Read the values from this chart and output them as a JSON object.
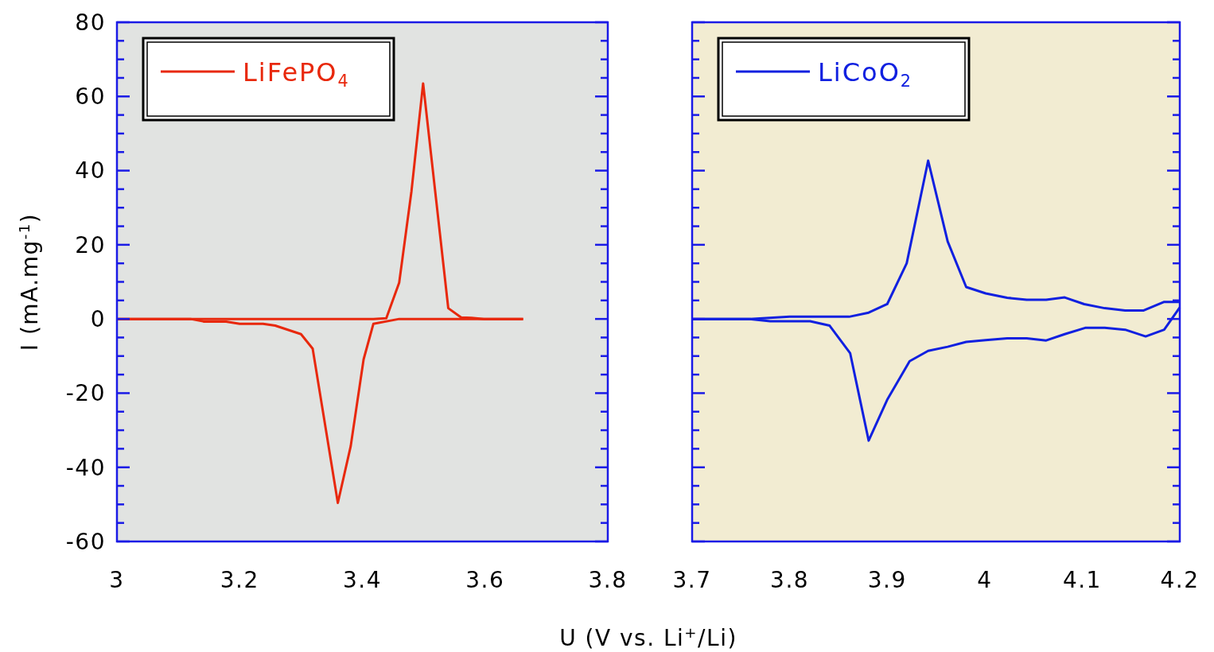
{
  "chart_data": [
    {
      "type": "line",
      "ylabel": "I (mA.mg$^{-1}$)",
      "xlabel": "U (V vs. Li$^{+}$/Li)",
      "xlim": [
        3,
        3.8
      ],
      "xticks": [
        3,
        3.2,
        3.4,
        3.6,
        3.8
      ],
      "ylim": [
        -60,
        80
      ],
      "yticks": [
        -60,
        {
          "value": -55,
          "label": null
        },
        {
          "value": -50,
          "label": null
        },
        {
          "value": -45,
          "label": null
        },
        -40,
        {
          "value": -35,
          "label": null
        },
        {
          "value": -30,
          "label": null
        },
        {
          "value": -25,
          "label": null
        },
        -20,
        {
          "value": -15,
          "label": null
        },
        {
          "value": -10,
          "label": null
        },
        {
          "value": -5,
          "label": null
        },
        0,
        {
          "value": 5,
          "label": null
        },
        {
          "value": 10,
          "label": null
        },
        {
          "value": 15,
          "label": null
        },
        20,
        {
          "value": 25,
          "label": null
        },
        {
          "value": 30,
          "label": null
        },
        {
          "value": 35,
          "label": null
        },
        40,
        {
          "value": 45,
          "label": null
        },
        {
          "value": 50,
          "label": null
        },
        {
          "value": 55,
          "label": null
        },
        60,
        {
          "value": 65,
          "label": null
        },
        {
          "value": 70,
          "label": null
        },
        {
          "value": 75,
          "label": null
        },
        80
      ],
      "legend": "top left",
      "grid": false,
      "marker": "none",
      "line_style": "solid",
      "series": [
        {
          "name": "LiFePO$_{4}$",
          "color": "#e8280c",
          "x": [
            3.0,
            3.12,
            3.142,
            3.178,
            3.2,
            3.238,
            3.258,
            3.3,
            3.319,
            3.36,
            3.381,
            3.402,
            3.418,
            3.46,
            3.662
          ],
          "values": [
            0,
            0,
            -0.7,
            -0.7,
            -1.3,
            -1.3,
            -1.8,
            -4.1,
            -8.0,
            -49.6,
            -34.3,
            -10.9,
            -1.3,
            0,
            0
          ]
        },
        {
          "color": "#e8280c",
          "x": [
            3.0,
            3.418,
            3.439,
            3.46,
            3.48,
            3.499,
            3.54,
            3.561,
            3.578,
            3.598,
            3.662
          ],
          "values": [
            0,
            0,
            0.2,
            9.8,
            34.4,
            63.5,
            2.9,
            0.4,
            0.3,
            0,
            0
          ]
        }
      ]
    },
    {
      "type": "line",
      "xlim": [
        3.7,
        4.2
      ],
      "xticks": [
        3.7,
        3.8,
        3.9,
        4,
        4.1,
        4.2
      ],
      "ylim": [
        -60,
        80
      ],
      "yticks": [
        {
          "value": -60,
          "label": null
        },
        {
          "value": -55,
          "label": null
        },
        {
          "value": -50,
          "label": null
        },
        {
          "value": -45,
          "label": null
        },
        {
          "value": -40,
          "label": null
        },
        {
          "value": -35,
          "label": null
        },
        {
          "value": -30,
          "label": null
        },
        {
          "value": -25,
          "label": null
        },
        {
          "value": -20,
          "label": null
        },
        {
          "value": -15,
          "label": null
        },
        {
          "value": -10,
          "label": null
        },
        {
          "value": -5,
          "label": null
        },
        {
          "value": 0,
          "label": null
        },
        {
          "value": 5,
          "label": null
        },
        {
          "value": 10,
          "label": null
        },
        {
          "value": 15,
          "label": null
        },
        {
          "value": 20,
          "label": null
        },
        {
          "value": 25,
          "label": null
        },
        {
          "value": 30,
          "label": null
        },
        {
          "value": 35,
          "label": null
        },
        {
          "value": 40,
          "label": null
        },
        {
          "value": 45,
          "label": null
        },
        {
          "value": 50,
          "label": null
        },
        {
          "value": 55,
          "label": null
        },
        {
          "value": 60,
          "label": null
        },
        {
          "value": 65,
          "label": null
        },
        {
          "value": 70,
          "label": null
        },
        {
          "value": 75,
          "label": null
        },
        {
          "value": 80,
          "label": null
        }
      ],
      "tick_labels": "x",
      "legend": "top left",
      "grid": false,
      "marker": "none",
      "line_style": "solid",
      "series": [
        {
          "name": "LiCoO$_{2}$",
          "color": "#1020e0",
          "x": [
            3.7,
            3.759,
            3.78,
            3.821,
            3.841,
            3.862,
            3.881,
            3.9,
            3.923,
            3.942,
            3.962,
            3.981,
            4.001,
            4.023,
            4.043,
            4.063,
            4.082,
            4.103,
            4.123,
            4.144,
            4.165,
            4.184,
            4.2
          ],
          "values": [
            0,
            0,
            -0.6,
            -0.6,
            -1.8,
            -9.2,
            -32.8,
            -21.8,
            -11.4,
            -8.6,
            -7.5,
            -6.2,
            -5.7,
            -5.2,
            -5.2,
            -5.8,
            -4.1,
            -2.4,
            -2.4,
            -2.9,
            -4.7,
            -2.9,
            3.1
          ]
        },
        {
          "color": "#1020e0",
          "x": [
            3.7,
            3.759,
            3.8,
            3.861,
            3.881,
            3.9,
            3.92,
            3.942,
            3.962,
            3.981,
            4.001,
            4.023,
            4.043,
            4.063,
            4.082,
            4.102,
            4.123,
            4.144,
            4.163,
            4.184,
            4.2
          ],
          "values": [
            0,
            0,
            0.6,
            0.6,
            1.7,
            4.0,
            15.0,
            42.7,
            20.9,
            8.6,
            6.9,
            5.7,
            5.2,
            5.2,
            5.8,
            4.0,
            2.9,
            2.3,
            2.3,
            4.6,
            4.6
          ]
        }
      ]
    }
  ]
}
